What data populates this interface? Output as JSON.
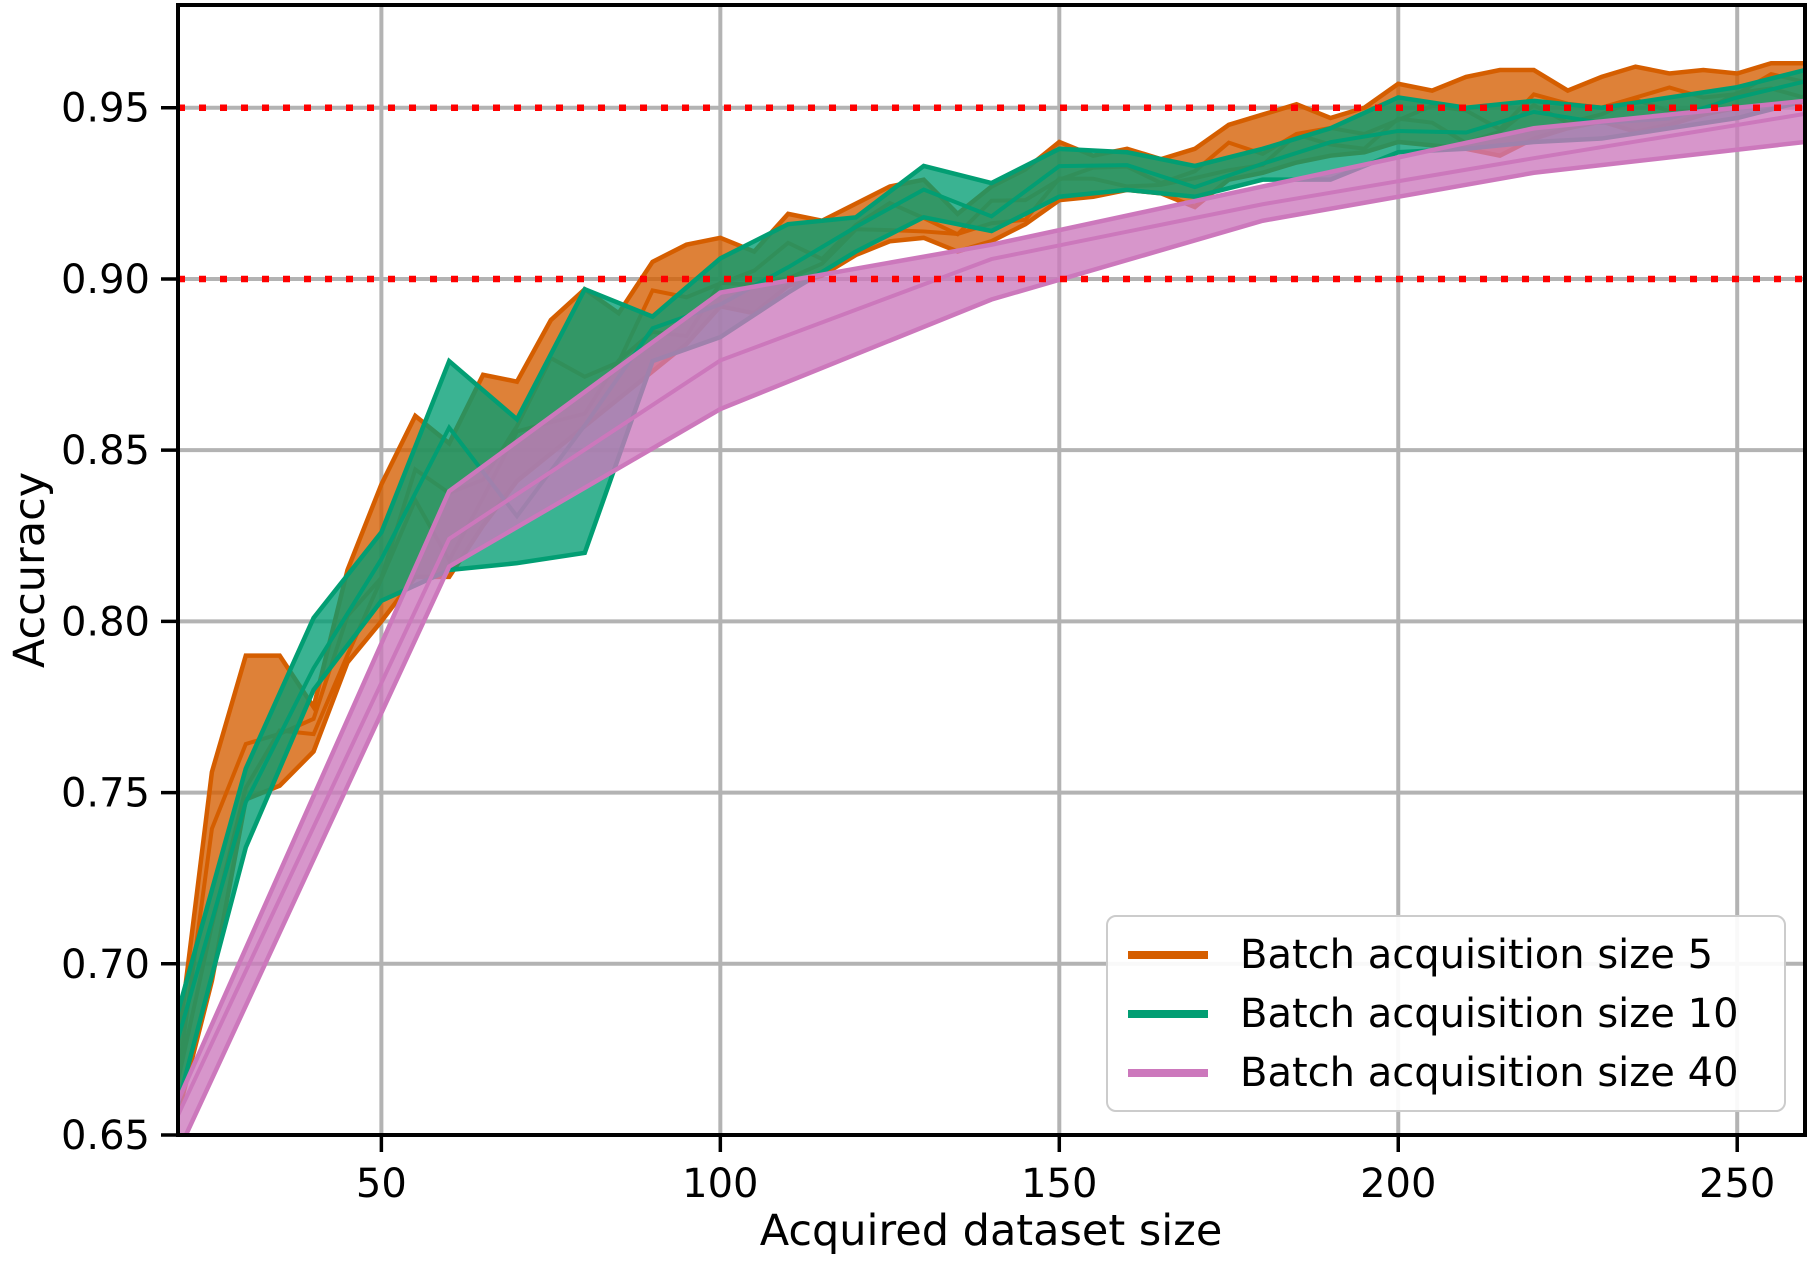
{
  "chart_data": {
    "type": "line",
    "title": "",
    "xlabel": "Acquired dataset size",
    "ylabel": "Accuracy",
    "xlim": [
      20,
      260
    ],
    "ylim": [
      0.65,
      0.98
    ],
    "grid": true,
    "grid_color": "#b3b3b3",
    "spine_color": "#000000",
    "x_ticks": [
      50,
      100,
      150,
      200,
      250
    ],
    "x_tick_labels": [
      "50",
      "100",
      "150",
      "200",
      "250"
    ],
    "y_ticks": [
      0.65,
      0.7,
      0.75,
      0.8,
      0.85,
      0.9,
      0.95
    ],
    "y_tick_labels": [
      "0.65",
      "0.70",
      "0.75",
      "0.80",
      "0.85",
      "0.90",
      "0.95"
    ],
    "legend_position": "lower right",
    "reference_lines": [
      {
        "y": 0.9,
        "color": "#ff0000",
        "style": "dotted"
      },
      {
        "y": 0.95,
        "color": "#ff0000",
        "style": "dotted"
      }
    ],
    "series": [
      {
        "name": "Batch acquisition size 5",
        "color": "#D55E00",
        "band": "min-max",
        "x": [
          20,
          25,
          30,
          35,
          40,
          45,
          50,
          55,
          60,
          65,
          70,
          75,
          80,
          85,
          90,
          95,
          100,
          105,
          110,
          115,
          120,
          125,
          130,
          135,
          140,
          145,
          150,
          155,
          160,
          165,
          170,
          175,
          180,
          185,
          190,
          195,
          200,
          205,
          210,
          215,
          220,
          225,
          230,
          235,
          240,
          245,
          250,
          255,
          260
        ],
        "upper": [
          0.676,
          0.756,
          0.79,
          0.79,
          0.775,
          0.815,
          0.84,
          0.86,
          0.852,
          0.872,
          0.87,
          0.888,
          0.897,
          0.89,
          0.905,
          0.91,
          0.912,
          0.908,
          0.919,
          0.917,
          0.922,
          0.927,
          0.929,
          0.919,
          0.927,
          0.932,
          0.94,
          0.936,
          0.938,
          0.935,
          0.938,
          0.945,
          0.948,
          0.951,
          0.947,
          0.95,
          0.957,
          0.955,
          0.959,
          0.961,
          0.961,
          0.955,
          0.959,
          0.962,
          0.96,
          0.961,
          0.96,
          0.963,
          0.963
        ],
        "lower": [
          0.656,
          0.695,
          0.748,
          0.752,
          0.762,
          0.788,
          0.8,
          0.813,
          0.813,
          0.828,
          0.841,
          0.849,
          0.857,
          0.865,
          0.873,
          0.881,
          0.892,
          0.89,
          0.898,
          0.901,
          0.907,
          0.911,
          0.912,
          0.908,
          0.911,
          0.916,
          0.923,
          0.924,
          0.926,
          0.925,
          0.921,
          0.929,
          0.931,
          0.934,
          0.936,
          0.937,
          0.94,
          0.939,
          0.938,
          0.936,
          0.941,
          0.944,
          0.946,
          0.943,
          0.945,
          0.948,
          0.95,
          0.951,
          0.952
        ]
      },
      {
        "name": "Batch acquisition size 10",
        "color": "#029E73",
        "band": "min-max",
        "x": [
          20,
          30,
          40,
          50,
          60,
          70,
          80,
          90,
          100,
          110,
          120,
          130,
          140,
          150,
          160,
          170,
          180,
          190,
          200,
          210,
          220,
          230,
          240,
          250,
          260
        ],
        "upper": [
          0.686,
          0.757,
          0.801,
          0.826,
          0.876,
          0.859,
          0.897,
          0.889,
          0.906,
          0.916,
          0.918,
          0.933,
          0.928,
          0.938,
          0.937,
          0.933,
          0.938,
          0.944,
          0.953,
          0.95,
          0.952,
          0.95,
          0.953,
          0.956,
          0.961
        ],
        "lower": [
          0.659,
          0.734,
          0.78,
          0.806,
          0.815,
          0.817,
          0.82,
          0.876,
          0.883,
          0.896,
          0.908,
          0.918,
          0.914,
          0.924,
          0.926,
          0.924,
          0.929,
          0.929,
          0.937,
          0.938,
          0.94,
          0.941,
          0.944,
          0.947,
          0.952
        ]
      },
      {
        "name": "Batch acquisition size 40",
        "color": "#CC78BC",
        "band": "min-max",
        "x": [
          20,
          60,
          100,
          140,
          180,
          220,
          260
        ],
        "upper": [
          0.66,
          0.838,
          0.896,
          0.91,
          0.927,
          0.944,
          0.952
        ],
        "lower": [
          0.645,
          0.816,
          0.862,
          0.894,
          0.917,
          0.931,
          0.94
        ]
      }
    ]
  },
  "legend": {
    "items": [
      {
        "label": "Batch acquisition size 5",
        "color": "#D55E00"
      },
      {
        "label": "Batch acquisition size 10",
        "color": "#029E73"
      },
      {
        "label": "Batch acquisition size 40",
        "color": "#CC78BC"
      }
    ]
  }
}
